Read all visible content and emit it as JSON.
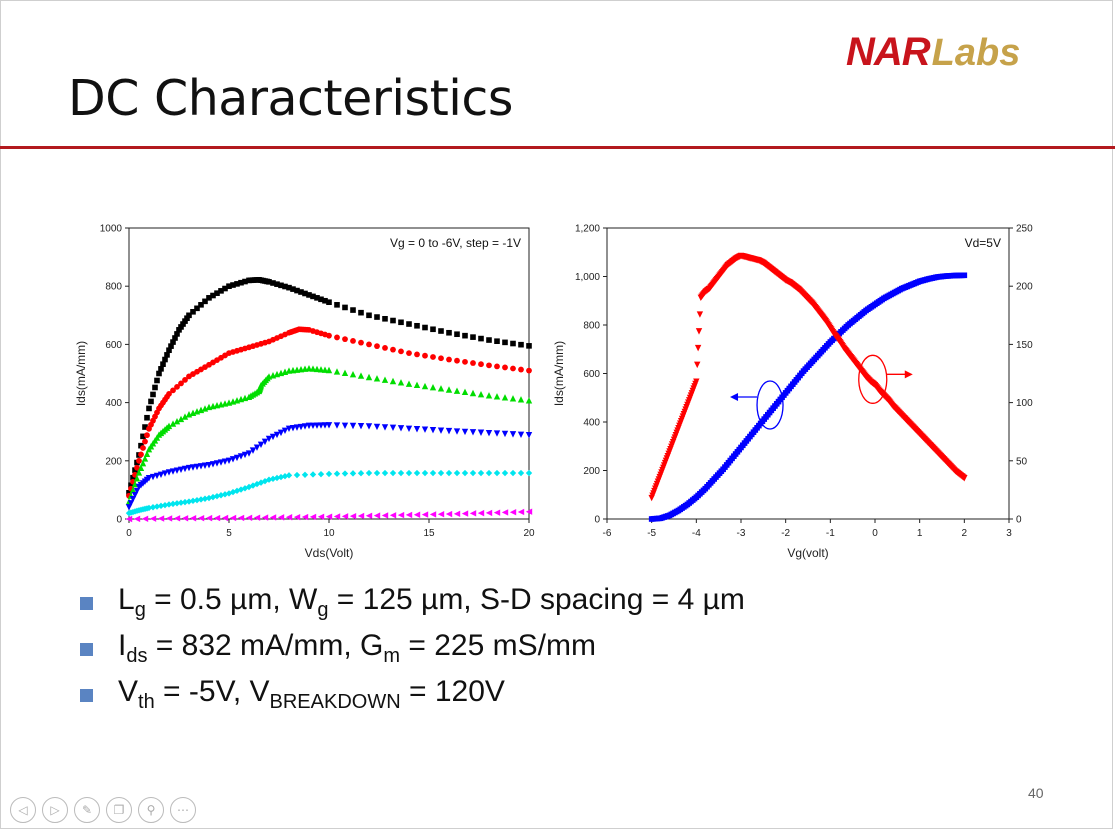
{
  "slide": {
    "title": "DC Characteristics",
    "logo": {
      "part1": "NAR",
      "part2": "Labs"
    },
    "page_number": "40"
  },
  "bullets": [
    {
      "parts": [
        [
          "L",
          "g",
          " = 0.5 µm, "
        ],
        [
          "W",
          "g",
          " = 125 µm, S-D spacing = 4 µm"
        ]
      ]
    },
    {
      "parts": [
        [
          "I",
          "ds",
          " = 832 mA/mm, "
        ],
        [
          "G",
          "m",
          " = 225 mS/mm"
        ]
      ]
    },
    {
      "parts": [
        [
          "V",
          "th",
          " = -5V, "
        ],
        [
          "V",
          "BREAKDOWN",
          " = 120V"
        ]
      ]
    }
  ],
  "nav_icons": [
    "prev-icon",
    "next-icon",
    "pen-icon",
    "copy-icon",
    "zoom-icon",
    "more-icon"
  ],
  "chart_data": [
    {
      "type": "scatter",
      "title": "",
      "annotation": "Vg = 0 to -6V, step = -1V",
      "xlabel": "Vds(Volt)",
      "ylabel": "Ids(mA/mm)",
      "xlim": [
        0,
        20
      ],
      "ylim": [
        0,
        1000
      ],
      "xticks": [
        0,
        5,
        10,
        15,
        20
      ],
      "yticks": [
        0,
        200,
        400,
        600,
        800,
        1000
      ],
      "series": [
        {
          "color": "#000000",
          "marker": "square",
          "x": [
            0,
            0.5,
            1,
            1.5,
            2,
            2.5,
            3,
            4,
            5,
            6,
            6.5,
            7,
            8,
            9,
            10,
            12,
            14,
            16,
            18,
            20
          ],
          "y": [
            90,
            220,
            380,
            500,
            580,
            650,
            700,
            760,
            800,
            820,
            822,
            815,
            795,
            770,
            745,
            700,
            670,
            640,
            615,
            595
          ]
        },
        {
          "color": "#ff0000",
          "marker": "circle",
          "x": [
            0,
            0.5,
            1,
            1.5,
            2,
            3,
            4,
            5,
            6,
            7,
            8,
            8.5,
            9,
            10,
            12,
            14,
            16,
            18,
            20
          ],
          "y": [
            80,
            200,
            310,
            380,
            430,
            490,
            530,
            570,
            590,
            610,
            640,
            652,
            650,
            630,
            600,
            570,
            548,
            528,
            510
          ]
        },
        {
          "color": "#00dd00",
          "marker": "triangle-up",
          "x": [
            0,
            0.5,
            1,
            1.5,
            2,
            3,
            4,
            5,
            6,
            6.5,
            6.6,
            7,
            8,
            9,
            10,
            12,
            14,
            16,
            18,
            20
          ],
          "y": [
            60,
            160,
            240,
            290,
            320,
            360,
            385,
            400,
            420,
            440,
            460,
            490,
            510,
            518,
            512,
            488,
            465,
            445,
            425,
            408
          ]
        },
        {
          "color": "#0000ff",
          "marker": "triangle-down",
          "x": [
            0,
            0.5,
            1,
            2,
            3,
            4,
            5,
            6,
            7,
            8,
            9,
            10,
            12,
            14,
            16,
            18,
            20
          ],
          "y": [
            40,
            110,
            140,
            160,
            175,
            185,
            200,
            225,
            275,
            310,
            320,
            322,
            318,
            310,
            302,
            295,
            288
          ]
        },
        {
          "color": "#00e5ee",
          "marker": "diamond",
          "x": [
            0,
            0.5,
            1,
            2,
            3,
            4,
            5,
            6,
            7,
            8,
            10,
            12,
            14,
            16,
            18,
            20
          ],
          "y": [
            20,
            30,
            38,
            50,
            60,
            72,
            88,
            110,
            135,
            150,
            155,
            158,
            158,
            158,
            158,
            158
          ]
        },
        {
          "color": "#ff00ff",
          "marker": "triangle-left",
          "x": [
            0,
            2,
            4,
            6,
            8,
            10,
            12,
            14,
            16,
            18,
            20
          ],
          "y": [
            0,
            2,
            3,
            4,
            6,
            8,
            11,
            14,
            17,
            21,
            25
          ]
        }
      ]
    },
    {
      "type": "scatter",
      "title": "",
      "annotation": "Vd=5V",
      "xlabel": "Vg(volt)",
      "ylabel": "Ids(mA/mm)",
      "y2label": "",
      "xlim": [
        -6,
        3
      ],
      "ylim": [
        0,
        1200
      ],
      "y2lim": [
        0,
        250
      ],
      "xticks": [
        -6,
        -5,
        -4,
        -3,
        -2,
        -1,
        0,
        1,
        2,
        3
      ],
      "yticks": [
        0,
        200,
        400,
        600,
        800,
        1000,
        1200
      ],
      "ytick_labels": [
        "0",
        "200",
        "400",
        "600",
        "800",
        "1,000",
        "1,200"
      ],
      "y2ticks": [
        0,
        50,
        100,
        150,
        200,
        250
      ],
      "series": [
        {
          "color": "#0000ff",
          "marker": "square",
          "axis": "left",
          "x": [
            -5,
            -4.8,
            -4.6,
            -4.4,
            -4.2,
            -4,
            -3.8,
            -3.6,
            -3.4,
            -3.2,
            -3,
            -2.8,
            -2.6,
            -2.4,
            -2.2,
            -2,
            -1.8,
            -1.6,
            -1.4,
            -1.2,
            -1,
            -0.8,
            -0.6,
            -0.4,
            -0.2,
            0,
            0.2,
            0.4,
            0.6,
            0.8,
            1,
            1.2,
            1.4,
            1.6,
            1.8,
            2
          ],
          "y": [
            0,
            3,
            15,
            35,
            60,
            90,
            125,
            165,
            205,
            250,
            295,
            340,
            385,
            430,
            475,
            520,
            565,
            610,
            650,
            690,
            730,
            765,
            800,
            830,
            860,
            885,
            910,
            930,
            950,
            965,
            980,
            990,
            998,
            1002,
            1004,
            1005
          ]
        },
        {
          "color": "#ff0000",
          "marker": "triangle-down",
          "axis": "right",
          "x": [
            -5,
            -4.9,
            -4.8,
            -4.7,
            -4.6,
            -4.5,
            -4.4,
            -4.3,
            -4.2,
            -4.1,
            -4,
            -3.9,
            -3.8,
            -3.7,
            -3.6,
            -3.5,
            -3.4,
            -3.3,
            -3.2,
            -3.1,
            -3,
            -2.9,
            -2.8,
            -2.7,
            -2.6,
            -2.5,
            -2.4,
            -2.3,
            -2.2,
            -2.1,
            -2,
            -1.9,
            -1.8,
            -1.7,
            -1.6,
            -1.5,
            -1.4,
            -1.3,
            -1.2,
            -1.1,
            -1,
            -0.9,
            -0.8,
            -0.7,
            -0.6,
            -0.5,
            -0.4,
            -0.3,
            -0.2,
            -0.1,
            0,
            0.1,
            0.2,
            0.3,
            0.4,
            0.5,
            0.6,
            0.7,
            0.8,
            0.9,
            1,
            1.1,
            1.2,
            1.3,
            1.4,
            1.5,
            1.6,
            1.7,
            1.8,
            1.9,
            2
          ],
          "y": [
            18,
            28,
            38,
            48,
            58,
            68,
            78,
            88,
            98,
            108,
            118,
            190,
            195,
            198,
            203,
            208,
            213,
            218,
            221,
            224,
            226,
            225,
            224,
            223,
            222,
            220,
            217,
            214,
            211,
            208,
            205,
            203,
            200,
            197,
            193,
            189,
            185,
            180,
            175,
            170,
            164,
            158,
            153,
            147,
            142,
            137,
            132,
            127,
            122,
            118,
            115,
            110,
            106,
            102,
            97,
            93,
            89,
            85,
            81,
            77,
            73,
            69,
            65,
            61,
            57,
            53,
            49,
            45,
            41,
            38,
            35
          ]
        }
      ]
    }
  ]
}
